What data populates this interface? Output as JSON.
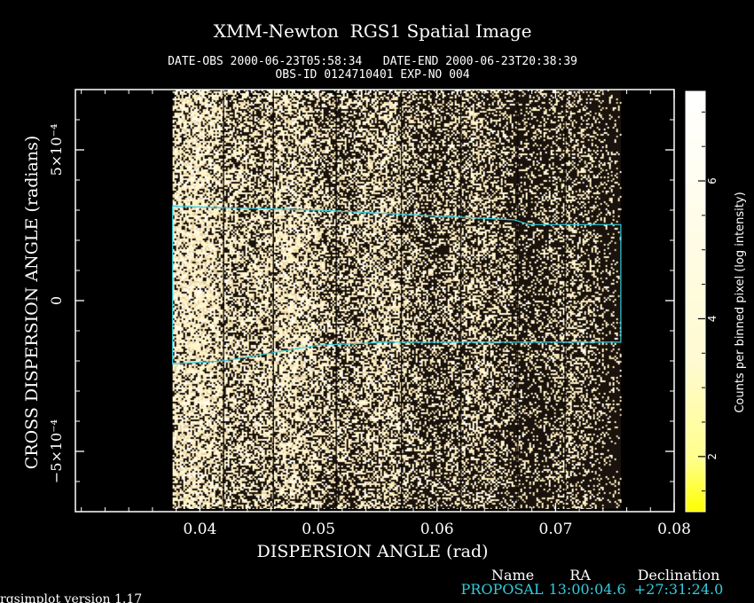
{
  "colors": {
    "background": "#000000",
    "axis": "#ffffff",
    "text": "#ffffff",
    "cyan": "#33ccdd",
    "cream_low": "#fffdd0",
    "cream_mid": "#f4e3b8",
    "yellow": "#ffff00"
  },
  "chart_data": {
    "type": "heatmap",
    "title": "XMM-Newton  RGS1 Spatial Image",
    "subtitle_line1": "DATE-OBS 2000-06-23T05:58:34   DATE-END 2000-06-23T20:38:39",
    "subtitle_line2": "OBS-ID 0124710401 EXP-NO 004",
    "xlabel": "DISPERSION ANGLE (rad)",
    "ylabel": "CROSS DISPERSION ANGLE (radians)",
    "xlim": [
      0.0295,
      0.08
    ],
    "ylim": [
      -0.0007,
      0.0007
    ],
    "x_ticks": [
      {
        "value": 0.04,
        "label": "0.04"
      },
      {
        "value": 0.05,
        "label": "0.05"
      },
      {
        "value": 0.06,
        "label": "0.06"
      },
      {
        "value": 0.07,
        "label": "0.07"
      },
      {
        "value": 0.08,
        "label": "0.08"
      }
    ],
    "y_ticks": [
      {
        "value": 0.0005,
        "label": "5×10⁻⁴"
      },
      {
        "value": 0,
        "label": "0"
      },
      {
        "value": -0.0005,
        "label": "−5×10⁻⁴"
      }
    ],
    "data_extent": {
      "x": [
        0.0377,
        0.0755
      ],
      "y": [
        -0.00069,
        0.00067
      ]
    },
    "data_extent_upper_edge": [
      [
        0.0377,
        0.00067
      ],
      [
        0.0755,
        0.0007
      ]
    ],
    "spatial_region": [
      [
        0.0377,
        0.000313
      ],
      [
        0.05,
        0.0003
      ],
      [
        0.0665,
        0.000268
      ],
      [
        0.0678,
        0.000252
      ],
      [
        0.0755,
        0.000252
      ],
      [
        0.0755,
        -0.000138
      ],
      [
        0.056,
        -0.000138
      ],
      [
        0.05,
        -0.000148
      ],
      [
        0.042,
        -0.0002
      ],
      [
        0.0377,
        -0.00021
      ]
    ],
    "colorbar": {
      "label": "Counts per binned pixel (log intensity)",
      "ticks": [
        {
          "value": 2,
          "label": "2"
        },
        {
          "value": 4,
          "label": "4"
        },
        {
          "value": 6,
          "label": "6"
        }
      ],
      "range": [
        1.2,
        7.3
      ]
    }
  },
  "table": {
    "headers": [
      "Name",
      "RA",
      "Declination"
    ],
    "row": {
      "name": "PROPOSAL",
      "ra": "13:00:04.6",
      "dec": "+27:31:24.0"
    }
  },
  "footer": "rgsimplot version 1.17"
}
